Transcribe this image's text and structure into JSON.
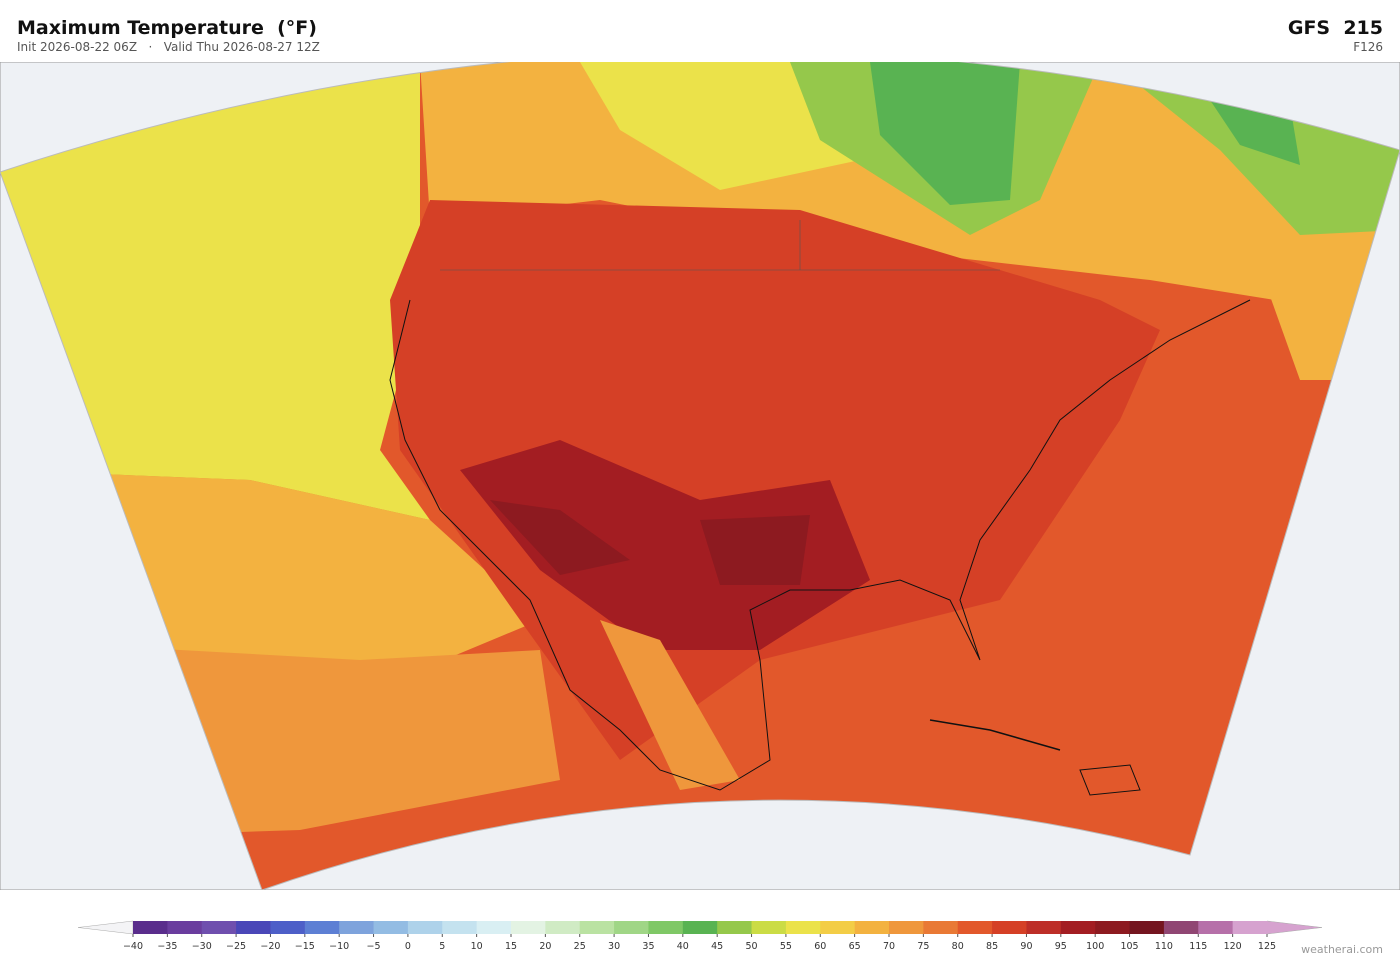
{
  "header": {
    "title": "Maximum Temperature  (°F)",
    "subtitle": "Init 2026-08-22 06Z   ·   Valid Thu 2026-08-27 12Z",
    "model": "GFS  215",
    "forecast_hour": "F126"
  },
  "colorbar": {
    "ticks": [
      {
        "value": -40,
        "label": "−40"
      },
      {
        "value": -35,
        "label": "−35"
      },
      {
        "value": -30,
        "label": "−30"
      },
      {
        "value": -25,
        "label": "−25"
      },
      {
        "value": -20,
        "label": "−20"
      },
      {
        "value": -15,
        "label": "−15"
      },
      {
        "value": -10,
        "label": "−10"
      },
      {
        "value": -5,
        "label": "−5"
      },
      0,
      5,
      10,
      15,
      20,
      25,
      30,
      35,
      40,
      45,
      50,
      55,
      60,
      65,
      70,
      75,
      80,
      85,
      90,
      95,
      100,
      105,
      110,
      115,
      120,
      125
    ],
    "colors": [
      "#5a2d8c",
      "#6a3d9e",
      "#6f4fae",
      "#4a47b8",
      "#4d5fc8",
      "#5d7fd4",
      "#7ea3dc",
      "#93bce3",
      "#aed2ea",
      "#c4e2ef",
      "#d9eff3",
      "#e3f3e3",
      "#d0ebc4",
      "#bae2a2",
      "#a0d686",
      "#7fc866",
      "#59b352",
      "#95c84b",
      "#cbdc45",
      "#ebe24a",
      "#f3cd46",
      "#f3b240",
      "#ef973c",
      "#e97935",
      "#e2582b",
      "#d54026",
      "#bd2e28",
      "#a31d22",
      "#8d1a20",
      "#74151f",
      "#904673",
      "#b670a9",
      "#d6a2cf"
    ]
  },
  "footer": {
    "credit": "weatherai.com"
  }
}
